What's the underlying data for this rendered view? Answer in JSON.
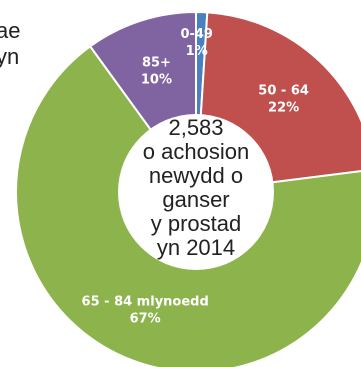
{
  "edge_fragments": {
    "top_line1": "ae",
    "top_line2": "yn"
  },
  "chart_data": {
    "type": "pie",
    "center_text": [
      "2,583",
      "o achosion",
      "newydd o",
      "ganser",
      "y prostad",
      "yn 2014"
    ],
    "slices": [
      {
        "label": "0-49",
        "percent_label": "1%",
        "value": 1,
        "color": "#4a7fc1"
      },
      {
        "label": "50 - 64",
        "percent_label": "22%",
        "value": 22,
        "color": "#c0504d"
      },
      {
        "label": "65 - 84 mlynoedd",
        "percent_label": "67%",
        "value": 67,
        "color": "#8db44c"
      },
      {
        "label": "85+",
        "percent_label": "10%",
        "value": 10,
        "color": "#8064a2"
      }
    ],
    "label_color": "#ffffff",
    "center_fill": "#ffffff",
    "center_text_color": "#222222"
  }
}
